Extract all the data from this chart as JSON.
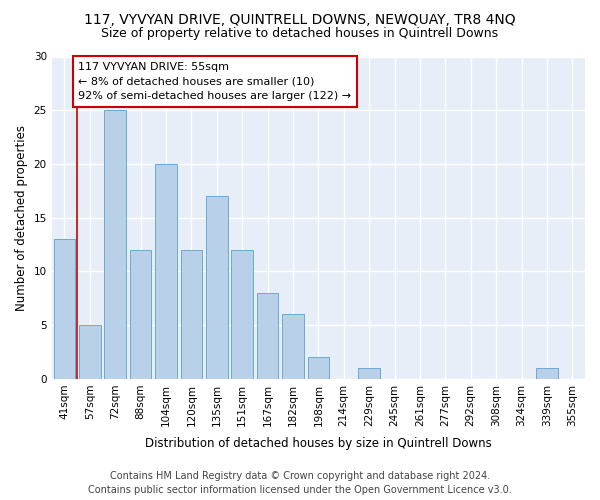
{
  "title1": "117, VYVYAN DRIVE, QUINTRELL DOWNS, NEWQUAY, TR8 4NQ",
  "title2": "Size of property relative to detached houses in Quintrell Downs",
  "xlabel": "Distribution of detached houses by size in Quintrell Downs",
  "ylabel": "Number of detached properties",
  "categories": [
    "41sqm",
    "57sqm",
    "72sqm",
    "88sqm",
    "104sqm",
    "120sqm",
    "135sqm",
    "151sqm",
    "167sqm",
    "182sqm",
    "198sqm",
    "214sqm",
    "229sqm",
    "245sqm",
    "261sqm",
    "277sqm",
    "292sqm",
    "308sqm",
    "324sqm",
    "339sqm",
    "355sqm"
  ],
  "values": [
    13,
    5,
    25,
    12,
    20,
    12,
    17,
    12,
    8,
    6,
    2,
    0,
    1,
    0,
    0,
    0,
    0,
    0,
    0,
    1,
    0
  ],
  "bar_color": "#b8d0e8",
  "bar_edge_color": "#6aaad4",
  "vline_color": "#cc0000",
  "annotation_text": "117 VYVYAN DRIVE: 55sqm\n← 8% of detached houses are smaller (10)\n92% of semi-detached houses are larger (122) →",
  "annotation_box_color": "#ffffff",
  "annotation_box_edge_color": "#cc0000",
  "ylim": [
    0,
    30
  ],
  "yticks": [
    0,
    5,
    10,
    15,
    20,
    25,
    30
  ],
  "footer1": "Contains HM Land Registry data © Crown copyright and database right 2024.",
  "footer2": "Contains public sector information licensed under the Open Government Licence v3.0.",
  "bg_color": "#ffffff",
  "plot_bg_color": "#e8eef8",
  "title1_fontsize": 10,
  "title2_fontsize": 9,
  "axis_label_fontsize": 8.5,
  "tick_fontsize": 7.5,
  "footer_fontsize": 7,
  "annotation_fontsize": 8,
  "vline_x_pos": 0.5
}
